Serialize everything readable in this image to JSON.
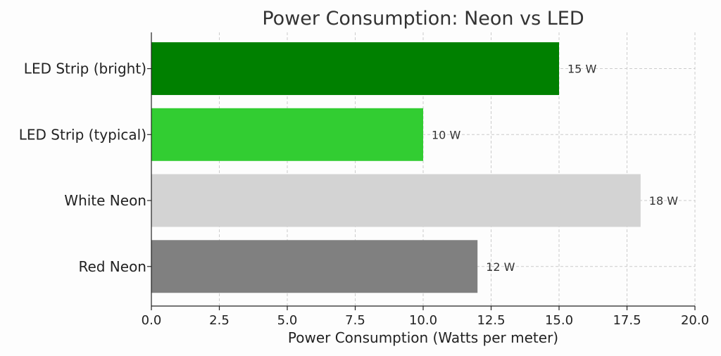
{
  "chart_data": {
    "type": "bar",
    "orientation": "horizontal",
    "title": "Power Consumption: Neon vs LED",
    "xlabel": "Power Consumption (Watts per meter)",
    "ylabel": "",
    "categories": [
      "Red Neon",
      "White Neon",
      "LED Strip (typical)",
      "LED Strip (bright)"
    ],
    "values": [
      12,
      18,
      10,
      15
    ],
    "data_labels": [
      "12 W",
      "18 W",
      "10 W",
      "15 W"
    ],
    "colors": [
      "#808080",
      "#d3d3d3",
      "#32cd32",
      "#008000"
    ],
    "xlim": [
      0,
      20
    ],
    "xticks": [
      "0.0",
      "2.5",
      "5.0",
      "7.5",
      "10.0",
      "12.5",
      "15.0",
      "17.5",
      "20.0"
    ],
    "xtick_values": [
      0,
      2.5,
      5,
      7.5,
      10,
      12.5,
      15,
      17.5,
      20
    ],
    "grid": true,
    "legend": "none"
  }
}
